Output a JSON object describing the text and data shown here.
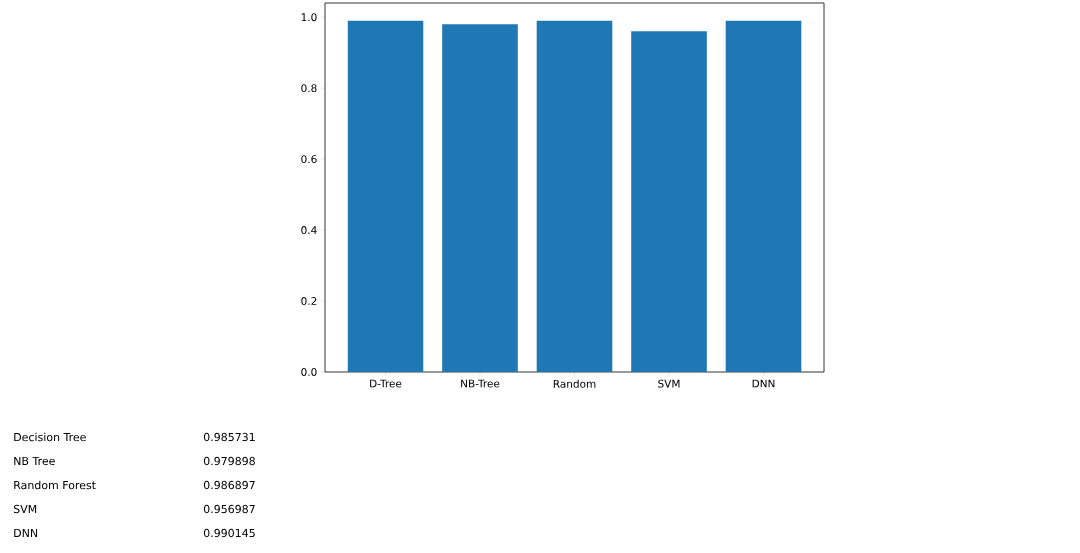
{
  "chart_data": [
    {
      "type": "bar",
      "categories": [
        "D-Tree",
        "NB-Tree",
        "Random",
        "SVM",
        "DNN"
      ],
      "values": [
        0.99,
        0.98,
        0.99,
        0.96,
        0.99
      ],
      "color": "#1f77b4",
      "ylim": [
        0,
        1.04
      ],
      "yticks": [
        {
          "value": 0,
          "label": "0.0"
        },
        {
          "value": 0.2,
          "label": "0.2"
        },
        {
          "value": 0.4,
          "label": "0.4"
        },
        {
          "value": 0.6,
          "label": "0.6"
        },
        {
          "value": 0.8,
          "label": "0.8"
        },
        {
          "value": 1.0,
          "label": "1.0"
        }
      ]
    },
    {
      "type": "other",
      "annotations": [
        "Decision Tree",
        "0.985731",
        "NB Tree",
        "0.979898",
        "Random Forest",
        "0.986897",
        "SVM",
        "0.956987",
        "DNN",
        "0.990145"
      ]
    }
  ]
}
